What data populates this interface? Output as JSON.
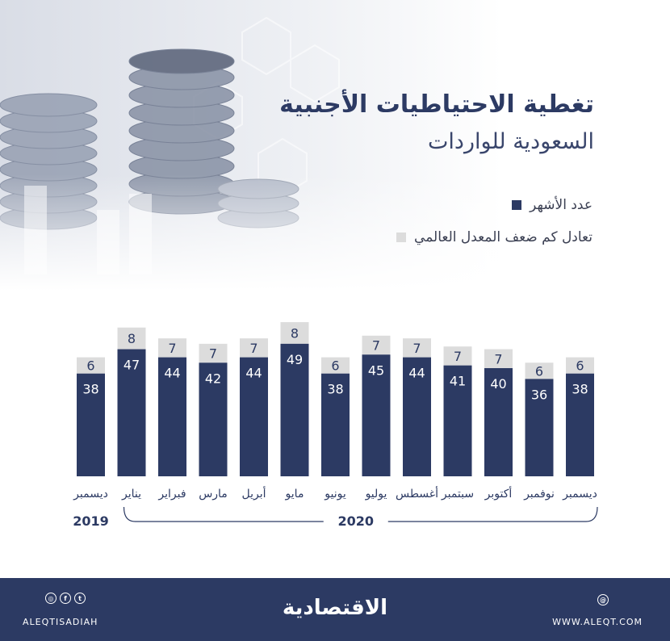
{
  "title_line1": "تغطية الاحتياطيات الأجنبية",
  "title_line2": "السعودية للواردات",
  "legend": [
    {
      "label": "عدد الأشهر",
      "color": "#2c3a63"
    },
    {
      "label": "تعادل كم ضعف المعدل العالمي",
      "color": "#dcdcdc"
    }
  ],
  "footer": {
    "brand": "الاقتصادية",
    "handle": "ALEQTISADIAH",
    "website": "WWW.ALEQT.COM",
    "social_icons": [
      "instagram-icon",
      "facebook-icon",
      "twitter-icon"
    ],
    "web_icon": "globe-icon"
  },
  "chart_data": {
    "type": "bar",
    "categories": [
      "ديسمبر",
      "يناير",
      "فبراير",
      "مارس",
      "أبريل",
      "مايو",
      "يونيو",
      "يوليو",
      "أغسطس",
      "سبتمبر",
      "أكتوبر",
      "نوفمبر",
      "ديسمبر"
    ],
    "series": [
      {
        "name": "عدد الأشهر",
        "values": [
          38,
          47,
          44,
          42,
          44,
          49,
          38,
          45,
          44,
          41,
          40,
          36,
          38
        ],
        "color": "#2c3a63"
      },
      {
        "name": "تعادل كم ضعف المعدل العالمي",
        "values": [
          6,
          8,
          7,
          7,
          7,
          8,
          6,
          7,
          7,
          7,
          7,
          6,
          6
        ],
        "color": "#dcdcdc"
      }
    ],
    "stacked": true,
    "year_groups": [
      {
        "label": "2019",
        "from": 0,
        "to": 0
      },
      {
        "label": "2020",
        "from": 1,
        "to": 12
      }
    ],
    "title": "",
    "xlabel": "",
    "ylabel": "",
    "ylim": [
      0,
      57
    ],
    "grid": false
  }
}
